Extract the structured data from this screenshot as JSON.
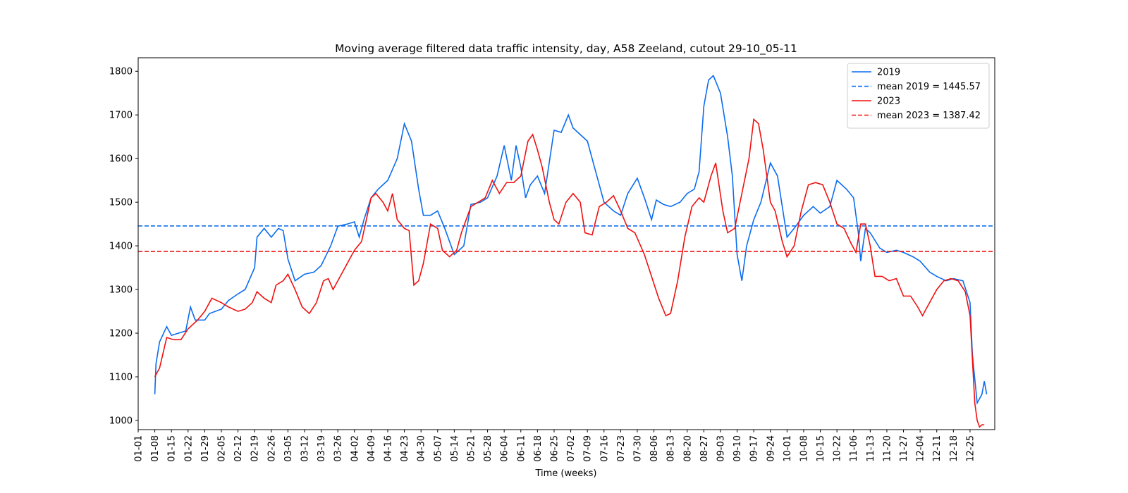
{
  "chart_data": {
    "type": "line",
    "title": "Moving average filtered data traffic intensity, day, A58 Zeeland, cutout 29-10_05-11",
    "x_label": "Time (weeks)",
    "xlim": [
      0,
      360.4
    ],
    "xticks": [
      {
        "value": 0,
        "label": "01-01"
      },
      {
        "value": 7,
        "label": "01-08"
      },
      {
        "value": 14,
        "label": "01-15"
      },
      {
        "value": 21,
        "label": "01-22"
      },
      {
        "value": 28,
        "label": "01-29"
      },
      {
        "value": 35,
        "label": "02-05"
      },
      {
        "value": 42,
        "label": "02-12"
      },
      {
        "value": 49,
        "label": "02-19"
      },
      {
        "value": 56,
        "label": "02-26"
      },
      {
        "value": 63,
        "label": "03-05"
      },
      {
        "value": 70,
        "label": "03-12"
      },
      {
        "value": 77,
        "label": "03-19"
      },
      {
        "value": 84,
        "label": "03-26"
      },
      {
        "value": 91,
        "label": "04-02"
      },
      {
        "value": 98,
        "label": "04-09"
      },
      {
        "value": 105,
        "label": "04-16"
      },
      {
        "value": 112,
        "label": "04-23"
      },
      {
        "value": 119,
        "label": "04-30"
      },
      {
        "value": 126,
        "label": "05-07"
      },
      {
        "value": 133,
        "label": "05-14"
      },
      {
        "value": 140,
        "label": "05-21"
      },
      {
        "value": 147,
        "label": "05-28"
      },
      {
        "value": 154,
        "label": "06-04"
      },
      {
        "value": 161,
        "label": "06-11"
      },
      {
        "value": 168,
        "label": "06-18"
      },
      {
        "value": 175,
        "label": "06-25"
      },
      {
        "value": 182,
        "label": "07-02"
      },
      {
        "value": 189,
        "label": "07-09"
      },
      {
        "value": 196,
        "label": "07-16"
      },
      {
        "value": 203,
        "label": "07-23"
      },
      {
        "value": 210,
        "label": "07-30"
      },
      {
        "value": 217,
        "label": "08-06"
      },
      {
        "value": 224,
        "label": "08-13"
      },
      {
        "value": 231,
        "label": "08-20"
      },
      {
        "value": 238,
        "label": "08-27"
      },
      {
        "value": 245,
        "label": "09-03"
      },
      {
        "value": 252,
        "label": "09-10"
      },
      {
        "value": 259,
        "label": "09-17"
      },
      {
        "value": 266,
        "label": "09-24"
      },
      {
        "value": 273,
        "label": "10-01"
      },
      {
        "value": 280,
        "label": "10-08"
      },
      {
        "value": 287,
        "label": "10-15"
      },
      {
        "value": 294,
        "label": "10-22"
      },
      {
        "value": 301,
        "label": "11-06"
      },
      {
        "value": 308,
        "label": "11-13"
      },
      {
        "value": 315,
        "label": "11-20"
      },
      {
        "value": 322,
        "label": "11-27"
      },
      {
        "value": 329,
        "label": "12-04"
      },
      {
        "value": 336,
        "label": "12-11"
      },
      {
        "value": 343,
        "label": "12-18"
      },
      {
        "value": 350,
        "label": "12-25"
      }
    ],
    "ylim": [
      979,
      1831
    ],
    "yticks": [
      1000,
      1100,
      1200,
      1300,
      1400,
      1500,
      1600,
      1700,
      1800
    ],
    "legend": "upper right",
    "series": [
      {
        "name": "2019",
        "color": "#0a6cf0",
        "x": [
          7,
          7.5,
          9,
          12,
          14,
          17,
          20,
          22,
          24,
          28,
          30,
          35,
          38,
          42,
          45,
          49,
          50,
          53,
          56,
          59,
          61,
          63,
          66,
          70,
          74,
          77,
          81,
          84,
          88,
          91,
          93,
          95,
          98,
          101,
          105,
          109,
          112,
          115,
          118,
          120,
          123,
          126,
          129,
          133,
          137,
          140,
          144,
          147,
          151,
          154,
          157,
          159,
          161,
          163,
          165,
          168,
          171,
          175,
          178,
          181,
          183,
          189,
          192,
          196,
          200,
          203,
          206,
          210,
          213,
          216,
          218,
          221,
          224,
          228,
          231,
          234,
          236,
          238,
          240,
          242,
          245,
          248,
          250,
          252,
          254,
          256,
          259,
          262,
          266,
          269,
          273,
          276,
          280,
          284,
          287,
          291,
          294,
          298,
          301,
          303,
          304,
          306,
          308,
          312,
          315,
          319,
          322,
          326,
          329,
          333,
          336,
          340,
          343,
          347,
          350,
          351,
          353,
          355,
          356,
          357
        ],
        "values": [
          1060,
          1130,
          1180,
          1215,
          1195,
          1200,
          1205,
          1260,
          1230,
          1230,
          1245,
          1255,
          1275,
          1290,
          1300,
          1350,
          1420,
          1440,
          1420,
          1440,
          1435,
          1370,
          1320,
          1335,
          1340,
          1355,
          1400,
          1445,
          1450,
          1455,
          1420,
          1460,
          1510,
          1530,
          1550,
          1600,
          1680,
          1640,
          1530,
          1470,
          1470,
          1480,
          1440,
          1380,
          1400,
          1495,
          1500,
          1510,
          1560,
          1630,
          1550,
          1630,
          1580,
          1510,
          1540,
          1560,
          1520,
          1665,
          1660,
          1700,
          1670,
          1640,
          1580,
          1500,
          1480,
          1470,
          1520,
          1555,
          1510,
          1460,
          1505,
          1495,
          1490,
          1500,
          1520,
          1530,
          1570,
          1720,
          1780,
          1790,
          1750,
          1650,
          1560,
          1380,
          1320,
          1400,
          1460,
          1500,
          1590,
          1560,
          1420,
          1440,
          1470,
          1490,
          1475,
          1490,
          1550,
          1530,
          1510,
          1430,
          1365,
          1440,
          1430,
          1395,
          1385,
          1390,
          1385,
          1375,
          1365,
          1340,
          1330,
          1320,
          1325,
          1320,
          1270,
          1150,
          1040,
          1060,
          1090,
          1060
        ],
        "mean": {
          "name": "mean 2019 = 1445.57",
          "value": 1445.57
        }
      },
      {
        "name": "2023",
        "color": "#f01010",
        "x": [
          7,
          9,
          12,
          15,
          18,
          21,
          25,
          28,
          31,
          35,
          38,
          42,
          45,
          48,
          50,
          53,
          56,
          58,
          61,
          63,
          66,
          69,
          72,
          75,
          78,
          80,
          82,
          85,
          88,
          91,
          94,
          96,
          98,
          100,
          103,
          105,
          107,
          109,
          112,
          114,
          116,
          118,
          120,
          123,
          126,
          128,
          131,
          134,
          136,
          138,
          140,
          143,
          146,
          149,
          152,
          155,
          158,
          161,
          164,
          166,
          168,
          170,
          173,
          175,
          177,
          180,
          183,
          186,
          188,
          191,
          194,
          197,
          200,
          203,
          206,
          209,
          213,
          216,
          219,
          222,
          224,
          227,
          230,
          233,
          236,
          238,
          241,
          243,
          246,
          248,
          251,
          254,
          257,
          259,
          261,
          263,
          266,
          268,
          271,
          273,
          276,
          279,
          282,
          285,
          288,
          291,
          294,
          297,
          300,
          302,
          304,
          306,
          308,
          310,
          313,
          316,
          319,
          322,
          325,
          328,
          330,
          333,
          336,
          339,
          342,
          345,
          348,
          350,
          351,
          352,
          353,
          354,
          355,
          356
        ],
        "values": [
          1100,
          1120,
          1190,
          1185,
          1185,
          1210,
          1230,
          1250,
          1280,
          1270,
          1260,
          1250,
          1255,
          1270,
          1295,
          1280,
          1270,
          1310,
          1320,
          1335,
          1300,
          1260,
          1245,
          1270,
          1320,
          1325,
          1300,
          1330,
          1360,
          1390,
          1410,
          1460,
          1510,
          1520,
          1500,
          1480,
          1520,
          1460,
          1440,
          1435,
          1310,
          1320,
          1360,
          1450,
          1440,
          1390,
          1375,
          1390,
          1430,
          1460,
          1490,
          1500,
          1510,
          1550,
          1520,
          1545,
          1545,
          1560,
          1640,
          1655,
          1620,
          1580,
          1500,
          1460,
          1450,
          1500,
          1520,
          1500,
          1430,
          1425,
          1490,
          1500,
          1515,
          1480,
          1440,
          1430,
          1380,
          1330,
          1280,
          1240,
          1245,
          1320,
          1420,
          1490,
          1510,
          1500,
          1560,
          1590,
          1480,
          1430,
          1440,
          1520,
          1600,
          1690,
          1680,
          1620,
          1500,
          1480,
          1410,
          1375,
          1400,
          1480,
          1540,
          1545,
          1540,
          1500,
          1450,
          1440,
          1405,
          1385,
          1450,
          1450,
          1400,
          1330,
          1330,
          1320,
          1325,
          1285,
          1285,
          1260,
          1240,
          1270,
          1300,
          1320,
          1325,
          1320,
          1295,
          1240,
          1140,
          1040,
          1000,
          985,
          990,
          990
        ],
        "mean": {
          "name": "mean 2023 = 1387.42",
          "value": 1387.42
        }
      }
    ]
  }
}
